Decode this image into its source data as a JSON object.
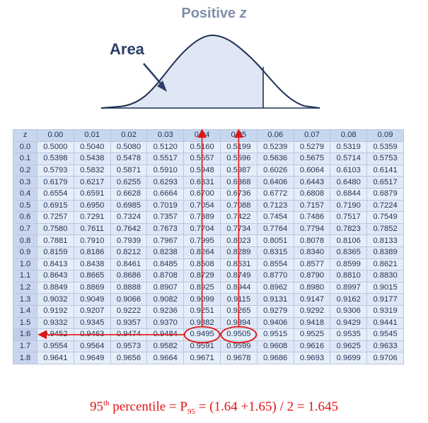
{
  "header": {
    "title_word": "Positive",
    "title_var": "z",
    "area_label": "Area"
  },
  "table": {
    "corner": "z",
    "columns": [
      "0.00",
      "0.01",
      "0.02",
      "0.03",
      "0.04",
      "0.05",
      "0.06",
      "0.07",
      "0.08",
      "0.09"
    ],
    "rows": [
      {
        "z": "0.0",
        "v": [
          "0.5000",
          "0.5040",
          "0.5080",
          "0.5120",
          "0.5160",
          "0.5199",
          "0.5239",
          "0.5279",
          "0.5319",
          "0.5359"
        ]
      },
      {
        "z": "0.1",
        "v": [
          "0.5398",
          "0.5438",
          "0.5478",
          "0.5517",
          "0.5557",
          "0.5596",
          "0.5636",
          "0.5675",
          "0.5714",
          "0.5753"
        ]
      },
      {
        "z": "0.2",
        "v": [
          "0.5793",
          "0.5832",
          "0.5871",
          "0.5910",
          "0.5948",
          "0.5987",
          "0.6026",
          "0.6064",
          "0.6103",
          "0.6141"
        ]
      },
      {
        "z": "0.3",
        "v": [
          "0.6179",
          "0.6217",
          "0.6255",
          "0.6293",
          "0.6331",
          "0.6368",
          "0.6406",
          "0.6443",
          "0.6480",
          "0.6517"
        ]
      },
      {
        "z": "0.4",
        "v": [
          "0.6554",
          "0.6591",
          "0.6628",
          "0.6664",
          "0.6700",
          "0.6736",
          "0.6772",
          "0.6808",
          "0.6844",
          "0.6879"
        ]
      },
      {
        "z": "0.5",
        "v": [
          "0.6915",
          "0.6950",
          "0.6985",
          "0.7019",
          "0.7054",
          "0.7088",
          "0.7123",
          "0.7157",
          "0.7190",
          "0.7224"
        ]
      },
      {
        "z": "0.6",
        "v": [
          "0.7257",
          "0.7291",
          "0.7324",
          "0.7357",
          "0.7389",
          "0.7422",
          "0.7454",
          "0.7486",
          "0.7517",
          "0.7549"
        ]
      },
      {
        "z": "0.7",
        "v": [
          "0.7580",
          "0.7611",
          "0.7642",
          "0.7673",
          "0.7704",
          "0.7734",
          "0.7764",
          "0.7794",
          "0.7823",
          "0.7852"
        ]
      },
      {
        "z": "0.8",
        "v": [
          "0.7881",
          "0.7910",
          "0.7939",
          "0.7967",
          "0.7995",
          "0.8023",
          "0.8051",
          "0.8078",
          "0.8106",
          "0.8133"
        ]
      },
      {
        "z": "0.9",
        "v": [
          "0.8159",
          "0.8186",
          "0.8212",
          "0.8238",
          "0.8264",
          "0.8289",
          "0.8315",
          "0.8340",
          "0.8365",
          "0.8389"
        ]
      },
      {
        "z": "1.0",
        "v": [
          "0.8413",
          "0.8438",
          "0.8461",
          "0.8485",
          "0.8508",
          "0.8531",
          "0.8554",
          "0.8577",
          "0.8599",
          "0.8621"
        ]
      },
      {
        "z": "1.1",
        "v": [
          "0.8643",
          "0.8665",
          "0.8686",
          "0.8708",
          "0.8729",
          "0.8749",
          "0.8770",
          "0.8790",
          "0.8810",
          "0.8830"
        ]
      },
      {
        "z": "1.2",
        "v": [
          "0.8849",
          "0.8869",
          "0.8888",
          "0.8907",
          "0.8925",
          "0.8944",
          "0.8962",
          "0.8980",
          "0.8997",
          "0.9015"
        ]
      },
      {
        "z": "1.3",
        "v": [
          "0.9032",
          "0.9049",
          "0.9066",
          "0.9082",
          "0.9099",
          "0.9115",
          "0.9131",
          "0.9147",
          "0.9162",
          "0.9177"
        ]
      },
      {
        "z": "1.4",
        "v": [
          "0.9192",
          "0.9207",
          "0.9222",
          "0.9236",
          "0.9251",
          "0.9265",
          "0.9279",
          "0.9292",
          "0.9306",
          "0.9319"
        ]
      },
      {
        "z": "1.5",
        "v": [
          "0.9332",
          "0.9345",
          "0.9357",
          "0.9370",
          "0.9382",
          "0.9394",
          "0.9406",
          "0.9418",
          "0.9429",
          "0.9441"
        ]
      },
      {
        "z": "1.6",
        "v": [
          "0.9452",
          "0.9463",
          "0.9474",
          "0.9484",
          "0.9495",
          "0.9505",
          "0.9515",
          "0.9525",
          "0.9535",
          "0.9545"
        ]
      },
      {
        "z": "1.7",
        "v": [
          "0.9554",
          "0.9564",
          "0.9573",
          "0.9582",
          "0.9591",
          "0.9599",
          "0.9608",
          "0.9616",
          "0.9625",
          "0.9633"
        ]
      },
      {
        "z": "1.8",
        "v": [
          "0.9641",
          "0.9649",
          "0.9656",
          "0.9664",
          "0.9671",
          "0.9678",
          "0.9686",
          "0.9693",
          "0.9699",
          "0.9706"
        ]
      }
    ],
    "highlight_row": "1.6",
    "highlight_cols": [
      "0.04",
      "0.05"
    ]
  },
  "formula": {
    "lead": "95",
    "lead_sup": "th",
    "text1": " percentile = P",
    "sub": "95",
    "text2": " = (1.64 +1.65) / 2 = 1.645"
  },
  "colors": {
    "accent_red": "#e21414",
    "curve": "#1f3153",
    "area_fill": "#dfe6f4",
    "title": "#7f8ea8"
  }
}
